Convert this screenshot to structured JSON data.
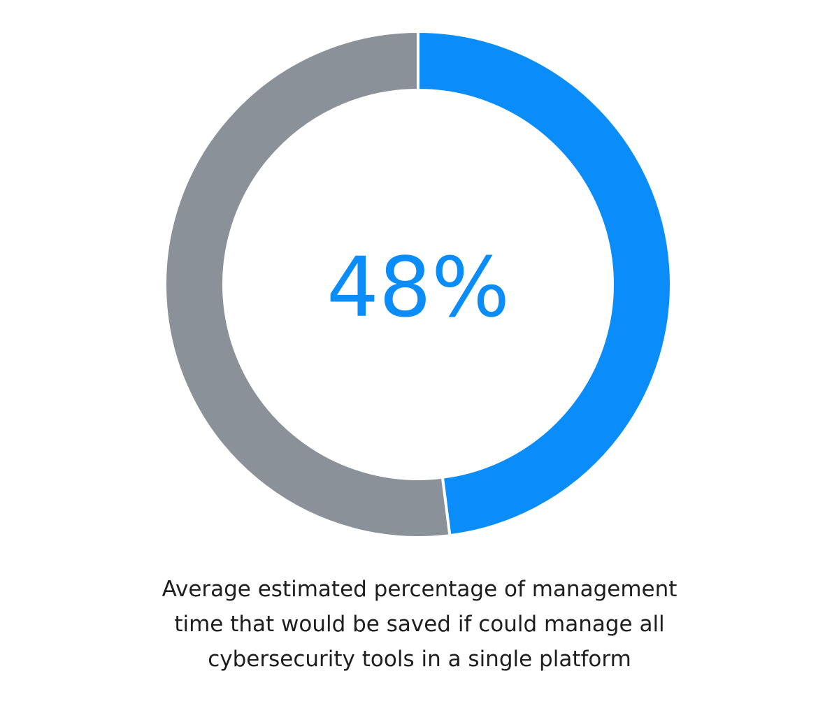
{
  "chart_data": {
    "type": "pie",
    "variant": "donut",
    "center_label": "48%",
    "slices": [
      {
        "value": 48,
        "color": "#0a8df8"
      },
      {
        "value": 52,
        "color": "#8a9199"
      }
    ],
    "caption_lines": [
      "Average estimated percentage of management",
      "time that would be saved if could manage all",
      "cybersecurity tools in a single platform"
    ],
    "colors": {
      "accent": "#0a8df8",
      "remainder": "#8a9199",
      "separator": "#ffffff",
      "caption_text": "#1e1e1e"
    }
  }
}
